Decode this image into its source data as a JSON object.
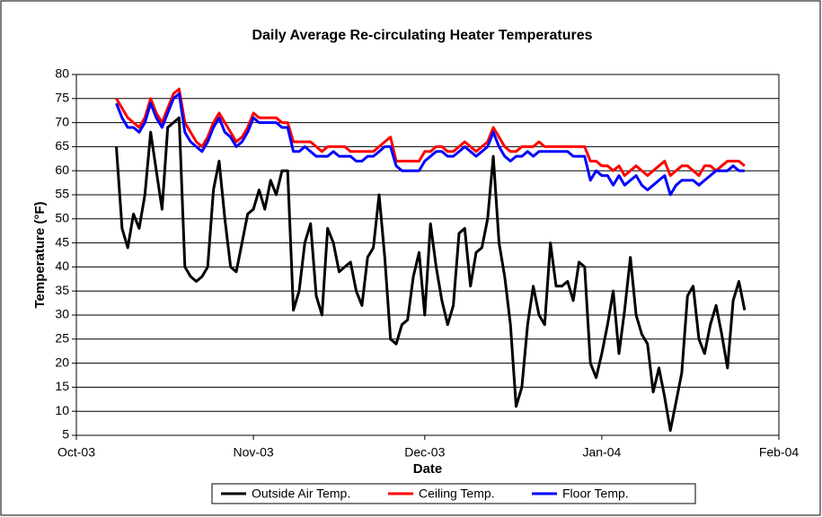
{
  "chart_data": {
    "type": "line",
    "title": "Daily Average Re-circulating Heater Temperatures",
    "x_label": "Date",
    "y_label": "Temperature (°F)",
    "xlim": [
      0,
      123
    ],
    "xticks": [
      {
        "value": 0,
        "label": "Oct-03"
      },
      {
        "value": 31,
        "label": "Nov-03"
      },
      {
        "value": 61,
        "label": "Dec-03"
      },
      {
        "value": 92,
        "label": "Jan-04"
      },
      {
        "value": 123,
        "label": "Feb-04"
      }
    ],
    "ylim": [
      5,
      80
    ],
    "yticks": [
      5,
      10,
      15,
      20,
      25,
      30,
      35,
      40,
      45,
      50,
      55,
      60,
      65,
      70,
      75,
      80
    ],
    "grid": true,
    "legend": "bottom",
    "x": [
      7,
      8,
      9,
      10,
      11,
      12,
      13,
      14,
      15,
      16,
      17,
      18,
      19,
      20,
      21,
      22,
      23,
      24,
      25,
      26,
      27,
      28,
      29,
      30,
      31,
      32,
      33,
      34,
      35,
      36,
      37,
      38,
      39,
      40,
      41,
      42,
      43,
      44,
      45,
      46,
      47,
      48,
      49,
      50,
      51,
      52,
      53,
      54,
      55,
      56,
      57,
      58,
      59,
      60,
      61,
      62,
      63,
      64,
      65,
      66,
      67,
      68,
      69,
      70,
      71,
      72,
      73,
      74,
      75,
      76,
      77,
      78,
      79,
      80,
      81,
      82,
      83,
      84,
      85,
      86,
      87,
      88,
      89,
      90,
      91,
      92,
      93,
      94,
      95,
      96,
      97,
      98,
      99,
      100,
      101,
      102,
      103,
      104,
      105,
      106,
      107,
      108,
      109,
      110,
      111,
      112,
      113,
      114,
      115,
      116,
      117
    ],
    "series": [
      {
        "name": "Outside Air Temp.",
        "color": "#000000",
        "values": [
          65,
          48,
          44,
          51,
          48,
          55,
          68,
          60,
          52,
          69,
          70,
          71,
          40,
          38,
          37,
          38,
          40,
          56,
          62,
          50,
          40,
          39,
          45,
          51,
          52,
          56,
          52,
          58,
          55,
          60,
          60,
          31,
          35,
          45,
          49,
          34,
          30,
          48,
          45,
          39,
          40,
          41,
          35,
          32,
          42,
          44,
          55,
          42,
          25,
          24,
          28,
          29,
          38,
          43,
          30,
          49,
          40,
          33,
          28,
          32,
          47,
          48,
          36,
          43,
          44,
          50,
          63,
          45,
          38,
          28,
          11,
          15,
          28,
          36,
          30,
          28,
          45,
          36,
          36,
          37,
          33,
          41,
          40,
          20,
          17,
          22,
          28,
          35,
          22,
          31,
          42,
          30,
          26,
          24,
          14,
          19,
          13,
          6,
          12,
          18,
          34,
          36,
          25,
          22,
          28,
          32,
          26,
          19,
          33,
          37,
          31
        ]
      },
      {
        "name": "Ceiling Temp.",
        "color": "#ff0000",
        "values": [
          75,
          73,
          71,
          70,
          69,
          71,
          75,
          72,
          70,
          73,
          76,
          77,
          70,
          68,
          66,
          65,
          67,
          70,
          72,
          70,
          68,
          66,
          67,
          69,
          72,
          71,
          71,
          71,
          71,
          70,
          70,
          66,
          66,
          66,
          66,
          65,
          64,
          65,
          65,
          65,
          65,
          64,
          64,
          64,
          64,
          64,
          65,
          66,
          67,
          62,
          62,
          62,
          62,
          62,
          64,
          64,
          65,
          65,
          64,
          64,
          65,
          66,
          65,
          64,
          65,
          66,
          69,
          67,
          65,
          64,
          64,
          65,
          65,
          65,
          66,
          65,
          65,
          65,
          65,
          65,
          65,
          65,
          65,
          62,
          62,
          61,
          61,
          60,
          61,
          59,
          60,
          61,
          60,
          59,
          60,
          61,
          62,
          59,
          60,
          61,
          61,
          60,
          59,
          61,
          61,
          60,
          61,
          62,
          62,
          62,
          61
        ]
      },
      {
        "name": "Floor Temp.",
        "color": "#0000ff",
        "values": [
          74,
          71,
          69,
          69,
          68,
          70,
          74,
          71,
          69,
          72,
          75,
          76,
          68,
          66,
          65,
          64,
          66,
          69,
          71,
          68,
          67,
          65,
          66,
          68,
          71,
          70,
          70,
          70,
          70,
          69,
          69,
          64,
          64,
          65,
          64,
          63,
          63,
          63,
          64,
          63,
          63,
          63,
          62,
          62,
          63,
          63,
          64,
          65,
          65,
          61,
          60,
          60,
          60,
          60,
          62,
          63,
          64,
          64,
          63,
          63,
          64,
          65,
          64,
          63,
          64,
          65,
          68,
          65,
          63,
          62,
          63,
          63,
          64,
          63,
          64,
          64,
          64,
          64,
          64,
          64,
          63,
          63,
          63,
          58,
          60,
          59,
          59,
          57,
          59,
          57,
          58,
          59,
          57,
          56,
          57,
          58,
          59,
          55,
          57,
          58,
          58,
          58,
          57,
          58,
          59,
          60,
          60,
          60,
          61,
          60,
          60
        ]
      }
    ]
  }
}
